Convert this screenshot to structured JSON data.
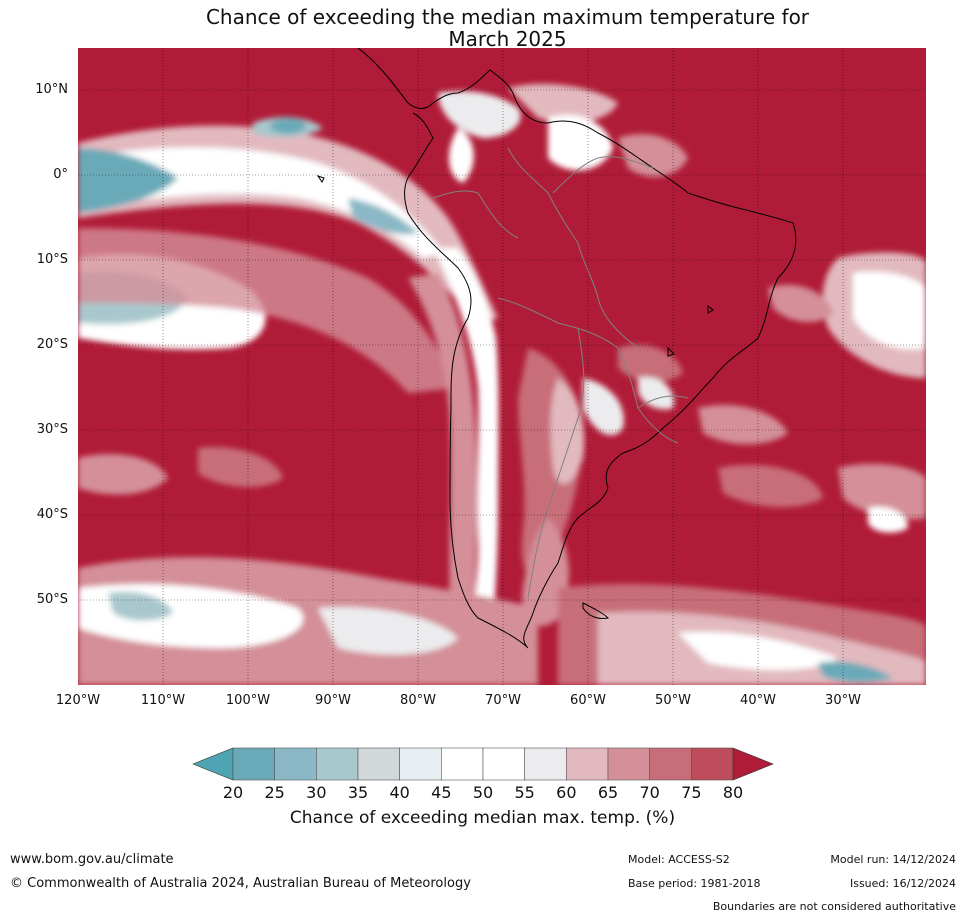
{
  "title_line1": "Chance of exceeding the median maximum temperature for",
  "title_line2": "March 2025",
  "lat_labels": [
    "10°N",
    "0°",
    "10°S",
    "20°S",
    "30°S",
    "40°S",
    "50°S"
  ],
  "lon_labels": [
    "120°W",
    "110°W",
    "100°W",
    "90°W",
    "80°W",
    "70°W",
    "60°W",
    "50°W",
    "40°W",
    "30°W"
  ],
  "colorbar": {
    "ticks": [
      "20",
      "25",
      "30",
      "35",
      "40",
      "45",
      "50",
      "55",
      "60",
      "65",
      "70",
      "75",
      "80"
    ],
    "label": "Chance of exceeding median max. temp. (%)",
    "colors": [
      "#6aaab8",
      "#8ab8c6",
      "#a9c8cd",
      "#d0d8da",
      "#e8eff2",
      "#ffffff",
      "#ffffff",
      "#ececee",
      "#e2b9bf",
      "#d48f98",
      "#c86e79",
      "#bf4c5a"
    ],
    "low_color": "#4fa5b3",
    "high_color": "#b01c37"
  },
  "footer": {
    "website": "www.bom.gov.au/climate",
    "copyright": "© Commonwealth of Australia 2024, Australian Bureau of Meteorology",
    "model": "Model: ACCESS-S2",
    "model_run": "Model run: 14/12/2024",
    "base_period": "Base period: 1981-2018",
    "issued": "Issued: 16/12/2024",
    "disclaimer": "Boundaries are not considered authoritative"
  }
}
